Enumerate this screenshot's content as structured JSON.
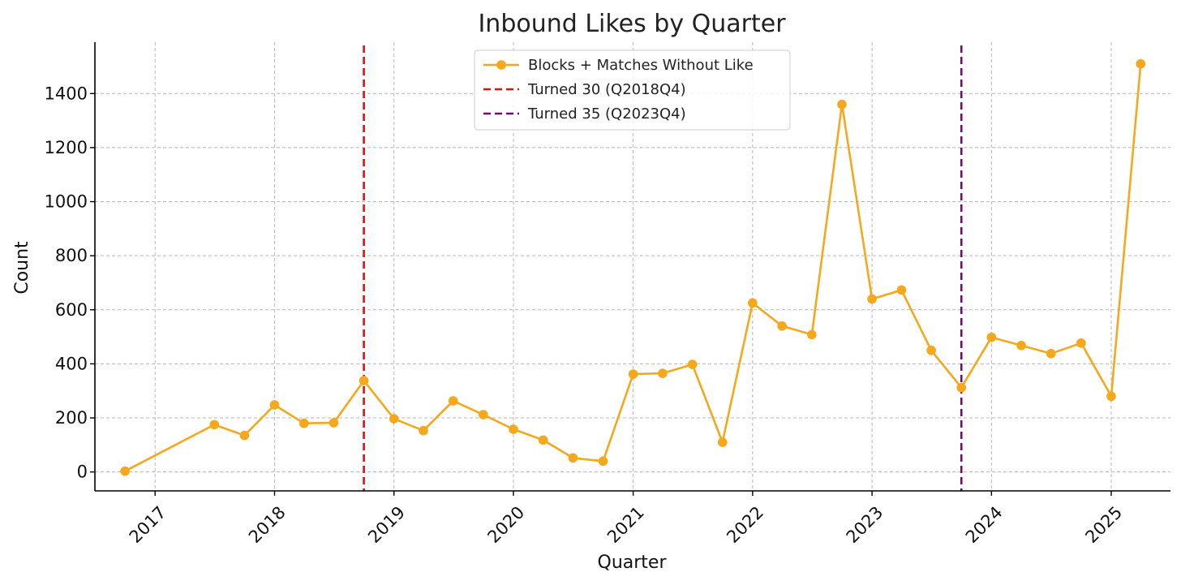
{
  "chart_data": {
    "type": "line",
    "title": "Inbound Likes by Quarter",
    "xlabel": "Quarter",
    "ylabel": "Count",
    "x_ticks": [
      "2017",
      "2018",
      "2019",
      "2020",
      "2021",
      "2022",
      "2023",
      "2024",
      "2025"
    ],
    "y_ticks": [
      0,
      200,
      400,
      600,
      800,
      1000,
      1200,
      1400
    ],
    "xlim": [
      "2016-07-01",
      "2025-07-01"
    ],
    "ylim": [
      -70,
      1590
    ],
    "grid": true,
    "legend_position": "top-center",
    "series": [
      {
        "name": "Blocks + Matches Without Like",
        "color": "#f5a81c",
        "marker": "circle",
        "points": [
          {
            "x": "2016-10-01",
            "y": 3
          },
          {
            "x": "2017-07-01",
            "y": 175
          },
          {
            "x": "2017-10-01",
            "y": 135
          },
          {
            "x": "2018-01-01",
            "y": 248
          },
          {
            "x": "2018-04-01",
            "y": 180
          },
          {
            "x": "2018-07-01",
            "y": 182
          },
          {
            "x": "2018-10-01",
            "y": 338
          },
          {
            "x": "2019-01-01",
            "y": 197
          },
          {
            "x": "2019-04-01",
            "y": 153
          },
          {
            "x": "2019-07-01",
            "y": 263
          },
          {
            "x": "2019-10-01",
            "y": 212
          },
          {
            "x": "2020-01-01",
            "y": 158
          },
          {
            "x": "2020-04-01",
            "y": 118
          },
          {
            "x": "2020-07-01",
            "y": 52
          },
          {
            "x": "2020-10-01",
            "y": 40
          },
          {
            "x": "2021-01-01",
            "y": 362
          },
          {
            "x": "2021-04-01",
            "y": 365
          },
          {
            "x": "2021-07-01",
            "y": 398
          },
          {
            "x": "2021-10-01",
            "y": 110
          },
          {
            "x": "2022-01-01",
            "y": 625
          },
          {
            "x": "2022-04-01",
            "y": 540
          },
          {
            "x": "2022-07-01",
            "y": 508
          },
          {
            "x": "2022-10-01",
            "y": 1360
          },
          {
            "x": "2023-01-01",
            "y": 640
          },
          {
            "x": "2023-04-01",
            "y": 673
          },
          {
            "x": "2023-07-01",
            "y": 450
          },
          {
            "x": "2023-10-01",
            "y": 312
          },
          {
            "x": "2024-01-01",
            "y": 498
          },
          {
            "x": "2024-04-01",
            "y": 468
          },
          {
            "x": "2024-07-01",
            "y": 438
          },
          {
            "x": "2024-10-01",
            "y": 477
          },
          {
            "x": "2025-01-01",
            "y": 280
          },
          {
            "x": "2025-04-01",
            "y": 1510
          }
        ]
      }
    ],
    "vlines": [
      {
        "name": "Turned 30 (Q2018Q4)",
        "x": "2018-10-01",
        "color": "#dd1111",
        "style": "dashed"
      },
      {
        "name": "Turned 35 (Q2023Q4)",
        "x": "2023-10-01",
        "color": "#6b0f6b",
        "style": "dashed"
      }
    ]
  }
}
